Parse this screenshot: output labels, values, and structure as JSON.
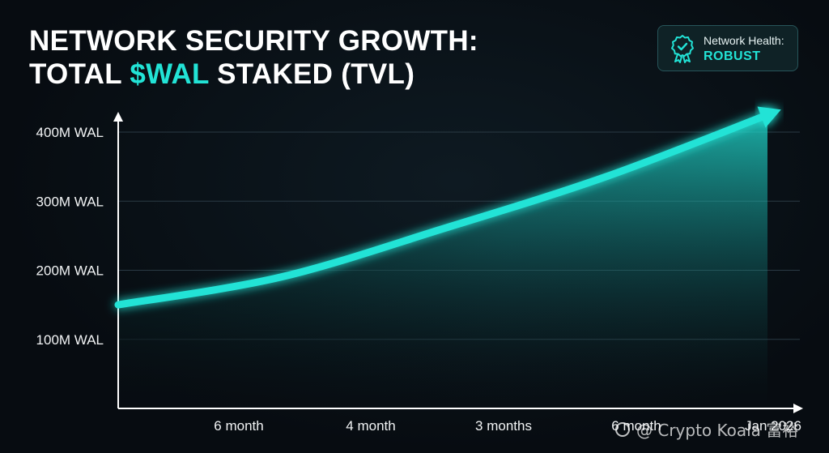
{
  "title": {
    "line1": "NETWORK SECURITY GROWTH:",
    "line2_prefix": "TOTAL ",
    "line2_accent": "$WAL",
    "line2_suffix": " STAKED (TVL)"
  },
  "badge": {
    "label": "Network Health:",
    "value": "ROBUST",
    "icon": "award-ribbon-icon"
  },
  "colors": {
    "accent": "#22e3d6",
    "background": "#070c11"
  },
  "chart_data": {
    "type": "area",
    "title": "NETWORK SECURITY GROWTH: TOTAL $WAL STAKED (TVL)",
    "xlabel": "",
    "ylabel": "",
    "x_tick_labels": [
      "6 month",
      "4 month",
      "3 months",
      "6 month",
      "Jan 2026"
    ],
    "y_tick_values": [
      100,
      200,
      300,
      400
    ],
    "y_tick_labels": [
      "100M WAL",
      "200M WAL",
      "300M WAL",
      "400M WAL"
    ],
    "ylim": [
      0,
      425
    ],
    "grid": "horizontal",
    "series": [
      {
        "x": [
          0,
          0.25,
          0.5,
          0.75,
          1.0
        ],
        "values": [
          150,
          190,
          260,
          335,
          425
        ],
        "color": "#22e3d6"
      }
    ]
  },
  "watermark": "@ Crypto Koala 富裕"
}
